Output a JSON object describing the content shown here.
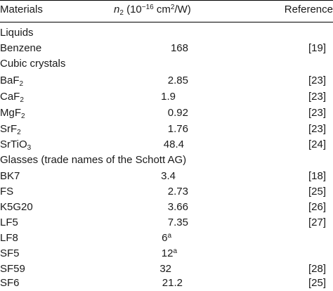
{
  "header": {
    "materials": "Materials",
    "n_symbol": "n",
    "n_sub": "2",
    "unit_open": "(10",
    "unit_exp": "−16",
    "unit_cm": "cm",
    "unit_cm_exp": "2",
    "unit_close": "/W)",
    "reference": "Reference"
  },
  "sections": [
    {
      "title": "Liquids"
    },
    {
      "title": "Cubic crystals"
    },
    {
      "title": "Glasses (trade names of the Schott AG)"
    }
  ],
  "rows": [
    {
      "base": "Benzene",
      "sub": "",
      "base2": "",
      "sub2": "",
      "value": "168",
      "note": "",
      "ref": "[19]"
    },
    {
      "base": "BaF",
      "sub": "2",
      "base2": "",
      "sub2": "",
      "value": "2.85",
      "note": "",
      "ref": "[23]"
    },
    {
      "base": "CaF",
      "sub": "2",
      "base2": "",
      "sub2": "",
      "value": "1.9",
      "note": "",
      "ref": "[23]"
    },
    {
      "base": "MgF",
      "sub": "2",
      "base2": "",
      "sub2": "",
      "value": "0.92",
      "note": "",
      "ref": "[23]"
    },
    {
      "base": "SrF",
      "sub": "2",
      "base2": "",
      "sub2": "",
      "value": "1.76",
      "note": "",
      "ref": "[23]"
    },
    {
      "base": "SrTiO",
      "sub": "3",
      "base2": "",
      "sub2": "",
      "value": "48.4",
      "note": "",
      "ref": "[24]"
    },
    {
      "base": "BK7",
      "sub": "",
      "base2": "",
      "sub2": "",
      "value": "3.4",
      "note": "",
      "ref": "[18]"
    },
    {
      "base": "FS",
      "sub": "",
      "base2": "",
      "sub2": "",
      "value": "2.73",
      "note": "",
      "ref": "[25]"
    },
    {
      "base": "K5G20",
      "sub": "",
      "base2": "",
      "sub2": "",
      "value": "3.66",
      "note": "",
      "ref": "[26]"
    },
    {
      "base": "LF5",
      "sub": "",
      "base2": "",
      "sub2": "",
      "value": "7.35",
      "note": "",
      "ref": "[27]"
    },
    {
      "base": "LF8",
      "sub": "",
      "base2": "",
      "sub2": "",
      "value": "6",
      "note": "a",
      "ref": ""
    },
    {
      "base": "SF5",
      "sub": "",
      "base2": "",
      "sub2": "",
      "value": "12",
      "note": "a",
      "ref": ""
    },
    {
      "base": "SF59",
      "sub": "",
      "base2": "",
      "sub2": "",
      "value": "32",
      "note": "",
      "ref": "[28]"
    },
    {
      "base": "SF6",
      "sub": "",
      "base2": "",
      "sub2": "",
      "value": "21.2",
      "note": "",
      "ref": "[25]"
    }
  ]
}
